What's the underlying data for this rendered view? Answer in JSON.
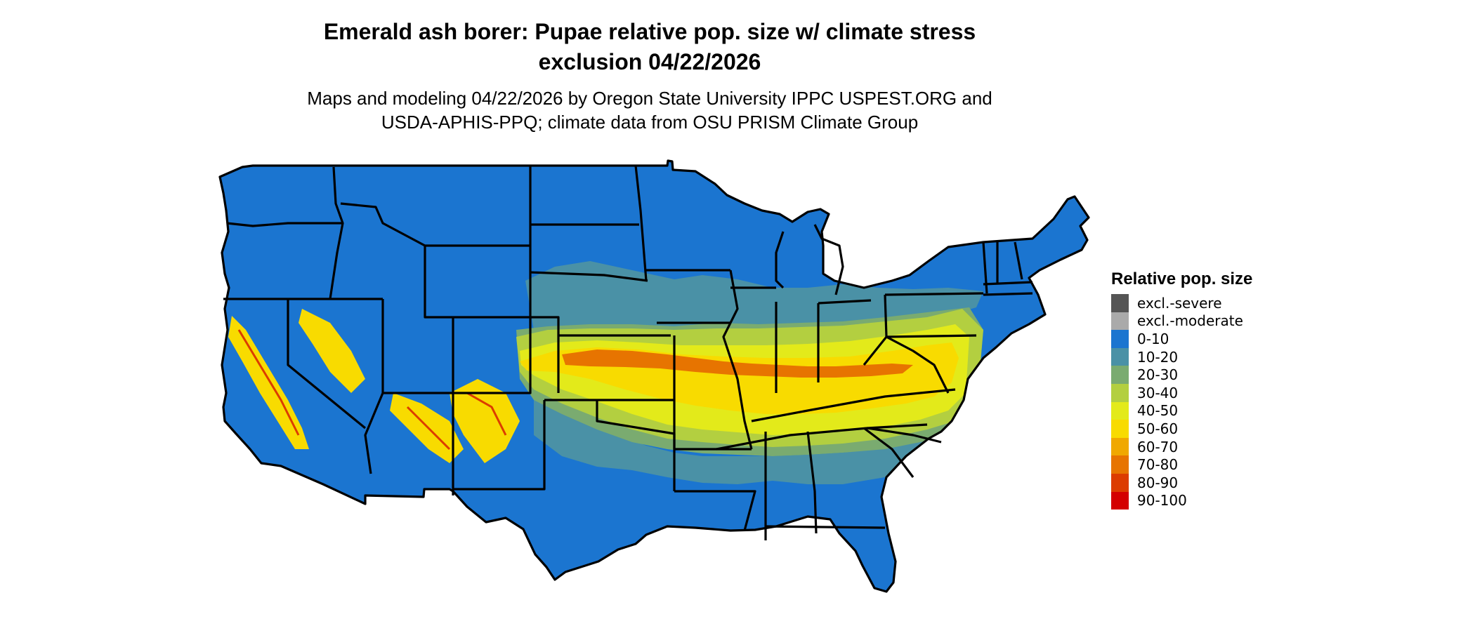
{
  "title": {
    "line1": "Emerald ash borer: Pupae relative pop. size w/ climate stress",
    "line2": "exclusion 04/22/2026"
  },
  "subtitle": {
    "line1": "Maps and modeling 04/22/2026 by Oregon State University IPPC USPEST.ORG and",
    "line2": "USDA-APHIS-PPQ; climate data from OSU PRISM Climate Group"
  },
  "legend": {
    "title": "Relative pop. size",
    "items": [
      {
        "label": "excl.-severe",
        "color": "#555555"
      },
      {
        "label": "excl.-moderate",
        "color": "#aaaaaa"
      },
      {
        "label": "0-10",
        "color": "#1b75d0"
      },
      {
        "label": "10-20",
        "color": "#4a91a6"
      },
      {
        "label": "20-30",
        "color": "#7aab70"
      },
      {
        "label": "30-40",
        "color": "#b3cf40"
      },
      {
        "label": "40-50",
        "color": "#e3ea1a"
      },
      {
        "label": "50-60",
        "color": "#f8db00"
      },
      {
        "label": "60-70",
        "color": "#f0a800"
      },
      {
        "label": "70-80",
        "color": "#e77400"
      },
      {
        "label": "80-90",
        "color": "#dc3c00"
      },
      {
        "label": "90-100",
        "color": "#d40000"
      }
    ]
  },
  "map": {
    "region": "contiguous United States",
    "border_color": "#000000",
    "base_class": "0-10",
    "zones": [
      {
        "description": "central band",
        "class": "10-20"
      },
      {
        "description": "central band",
        "class": "30-40"
      },
      {
        "description": "central band",
        "class": "40-50"
      },
      {
        "description": "central band",
        "class": "50-60"
      },
      {
        "description": "central band",
        "class": "70-80"
      },
      {
        "description": "southwest mountains",
        "class": "50-60"
      },
      {
        "description": "southwest mountains",
        "class": "80-90"
      }
    ]
  }
}
